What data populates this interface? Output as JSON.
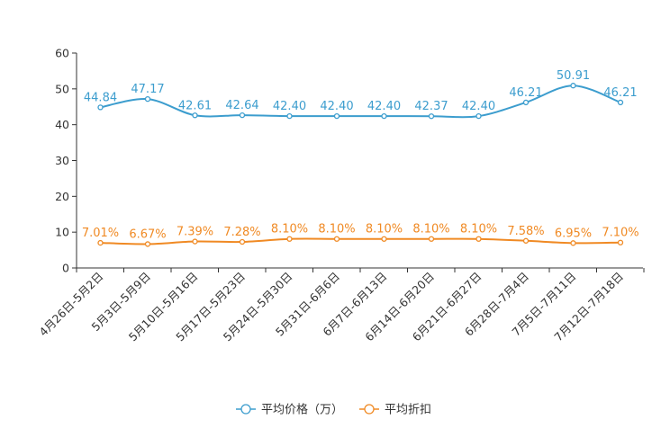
{
  "chart_data": {
    "type": "line",
    "title": "",
    "xlabel": "",
    "ylabel": "",
    "ylim": [
      0,
      60
    ],
    "yticks": [
      0,
      10,
      20,
      30,
      40,
      50,
      60
    ],
    "grid": false,
    "legend_position": "bottom",
    "categories": [
      "4月26日-5月2日",
      "5月3日-5月9日",
      "5月10日-5月16日",
      "5月17日-5月23日",
      "5月24日-5月30日",
      "5月31日-6月6日",
      "6月7日-6月13日",
      "6月14日-6月20日",
      "6月21日-6月27日",
      "6月28日-7月4日",
      "7月5日-7月11日",
      "7月12日-7月18日"
    ],
    "series": [
      {
        "name": "平均价格（万）",
        "color": "#3c9dce",
        "values": [
          44.84,
          47.17,
          42.61,
          42.64,
          42.4,
          42.4,
          42.4,
          42.37,
          42.4,
          46.21,
          50.91,
          46.21
        ],
        "labels": [
          "44.84",
          "47.17",
          "42.61",
          "42.64",
          "42.40",
          "42.40",
          "42.40",
          "42.37",
          "42.40",
          "46.21",
          "50.91",
          "46.21"
        ]
      },
      {
        "name": "平均折扣",
        "color": "#f08a24",
        "values": [
          7.01,
          6.67,
          7.39,
          7.28,
          8.1,
          8.1,
          8.1,
          8.1,
          8.1,
          7.58,
          6.95,
          7.1
        ],
        "labels": [
          "7.01%",
          "6.67%",
          "7.39%",
          "7.28%",
          "8.10%",
          "8.10%",
          "8.10%",
          "8.10%",
          "8.10%",
          "7.58%",
          "6.95%",
          "7.10%"
        ]
      }
    ]
  }
}
